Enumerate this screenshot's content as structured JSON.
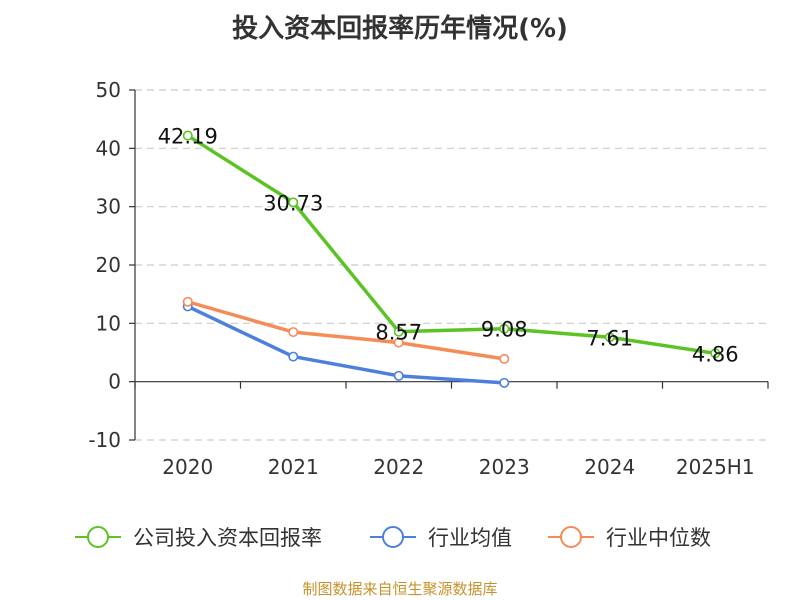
{
  "chart_data": {
    "type": "line",
    "title": "投入资本回报率历年情况(%)",
    "xlabel": "",
    "categories": [
      "2020",
      "2021",
      "2022",
      "2023",
      "2024",
      "2025H1"
    ],
    "ylim": [
      -10,
      50
    ],
    "yticks": [
      -10,
      0,
      10,
      20,
      30,
      40,
      50
    ],
    "grid": true,
    "legend_position": "bottom",
    "series": [
      {
        "name": "公司投入资本回报率",
        "color": "#5cc324",
        "values": [
          42.19,
          30.73,
          8.57,
          9.08,
          7.61,
          4.86
        ],
        "labels": [
          "42.19",
          "30.73",
          "8.57",
          "9.08",
          "7.61",
          "4.86"
        ]
      },
      {
        "name": "行业均值",
        "color": "#4c7fde",
        "values": [
          12.9,
          4.3,
          1.0,
          -0.2,
          null,
          null
        ]
      },
      {
        "name": "行业中位数",
        "color": "#f58b57",
        "values": [
          13.7,
          8.5,
          6.7,
          3.9,
          null,
          null
        ]
      }
    ]
  },
  "source": "制图数据来自恒生聚源数据库"
}
